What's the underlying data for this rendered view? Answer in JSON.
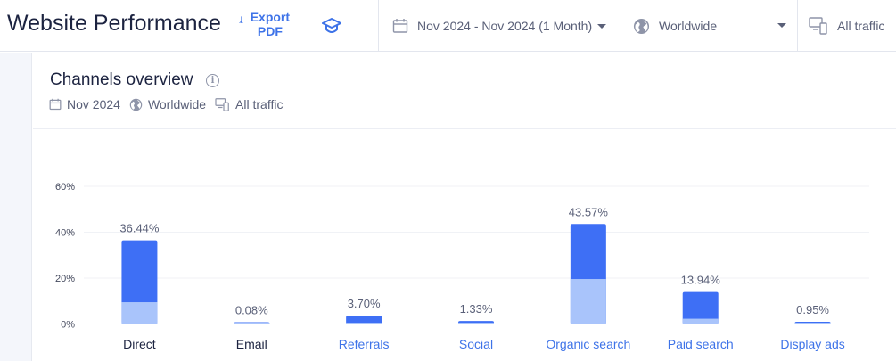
{
  "header": {
    "title": "Website Performance",
    "export_label": "Export PDF",
    "date_filter": "Nov 2024 - Nov 2024 (1 Month)",
    "region_filter": "Worldwide",
    "traffic_filter": "All traffic"
  },
  "card": {
    "title": "Channels overview",
    "meta": {
      "date": "Nov 2024",
      "region": "Worldwide",
      "traffic": "All traffic"
    }
  },
  "colors": {
    "accent": "#3e73e8",
    "bar_dark": "#3e6ff5",
    "bar_light": "#a9c4fb",
    "link": "#3e73e8",
    "text": "#1c2340"
  },
  "chart_data": {
    "type": "bar",
    "title": "",
    "xlabel": "",
    "ylabel": "",
    "ylim": [
      0,
      60
    ],
    "yticks": [
      "0%",
      "20%",
      "40%",
      "60%"
    ],
    "ytick_values": [
      0,
      20,
      40,
      60
    ],
    "grid": true,
    "categories": [
      "Direct",
      "Email",
      "Referrals",
      "Social",
      "Organic search",
      "Paid search",
      "Display ads"
    ],
    "category_is_link": [
      false,
      false,
      true,
      true,
      true,
      true,
      true
    ],
    "values": [
      36.44,
      0.08,
      3.7,
      1.33,
      43.57,
      13.94,
      0.95
    ],
    "value_labels": [
      "36.44%",
      "0.08%",
      "3.70%",
      "1.33%",
      "43.57%",
      "13.94%",
      "0.95%"
    ],
    "light_segment_values": [
      9.5,
      0.08,
      0.4,
      0.3,
      19.6,
      2.3,
      0.3
    ]
  }
}
